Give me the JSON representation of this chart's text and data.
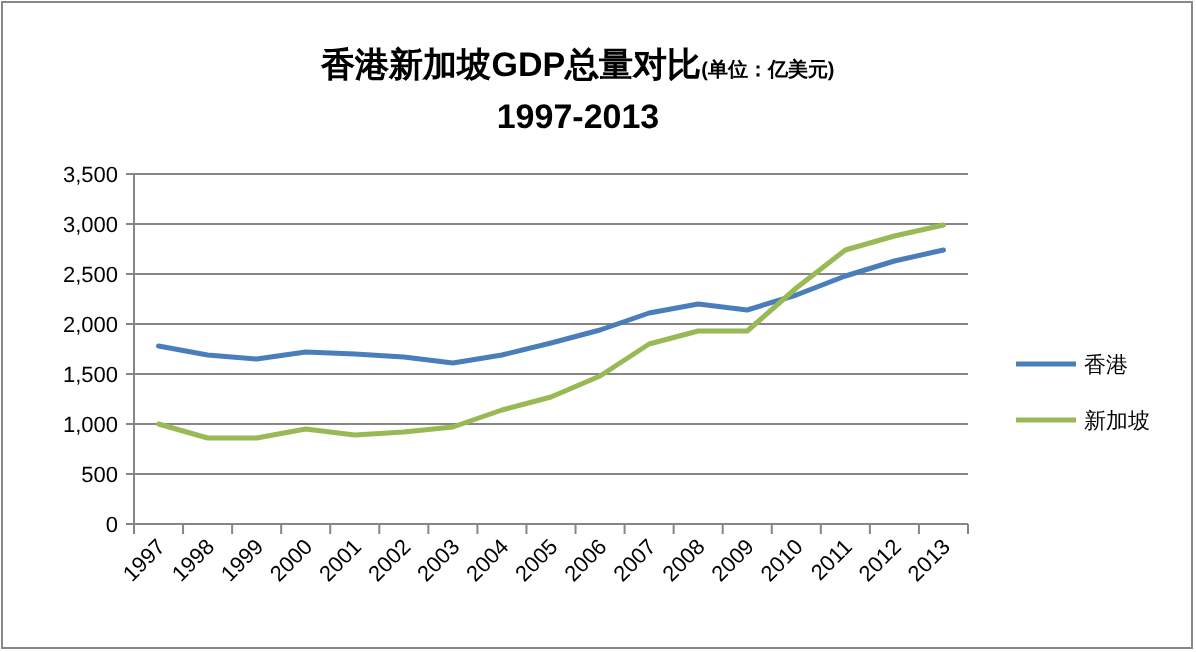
{
  "chart_data": {
    "type": "line",
    "title": "香港新加坡GDP总量对比\n1997-2013",
    "subtitle": "(单位：亿美元)",
    "categories": [
      "1997",
      "1998",
      "1999",
      "2000",
      "2001",
      "2002",
      "2003",
      "2004",
      "2005",
      "2006",
      "2007",
      "2008",
      "2009",
      "2010",
      "2011",
      "2012",
      "2013"
    ],
    "series": [
      {
        "name": "香港",
        "color": "#4a7ebb",
        "values": [
          1780,
          1690,
          1650,
          1720,
          1700,
          1670,
          1610,
          1690,
          1810,
          1940,
          2110,
          2200,
          2140,
          2290,
          2480,
          2630,
          2740
        ]
      },
      {
        "name": "新加坡",
        "color": "#98b954",
        "values": [
          1000,
          860,
          860,
          950,
          890,
          920,
          970,
          1140,
          1270,
          1480,
          1800,
          1930,
          1930,
          2360,
          2740,
          2880,
          2990
        ]
      }
    ],
    "ylim": [
      0,
      3500
    ],
    "yticks": [
      {
        "value": 0,
        "label": "0"
      },
      {
        "value": 500,
        "label": "500"
      },
      {
        "value": 1000,
        "label": "1,000"
      },
      {
        "value": 1500,
        "label": "1,500"
      },
      {
        "value": 2000,
        "label": "2,000"
      },
      {
        "value": 2500,
        "label": "2,500"
      },
      {
        "value": 3000,
        "label": "3,000"
      },
      {
        "value": 3500,
        "label": "3,500"
      }
    ],
    "grid": "y",
    "legend": "right",
    "marker": "none",
    "line_style": "solid"
  }
}
